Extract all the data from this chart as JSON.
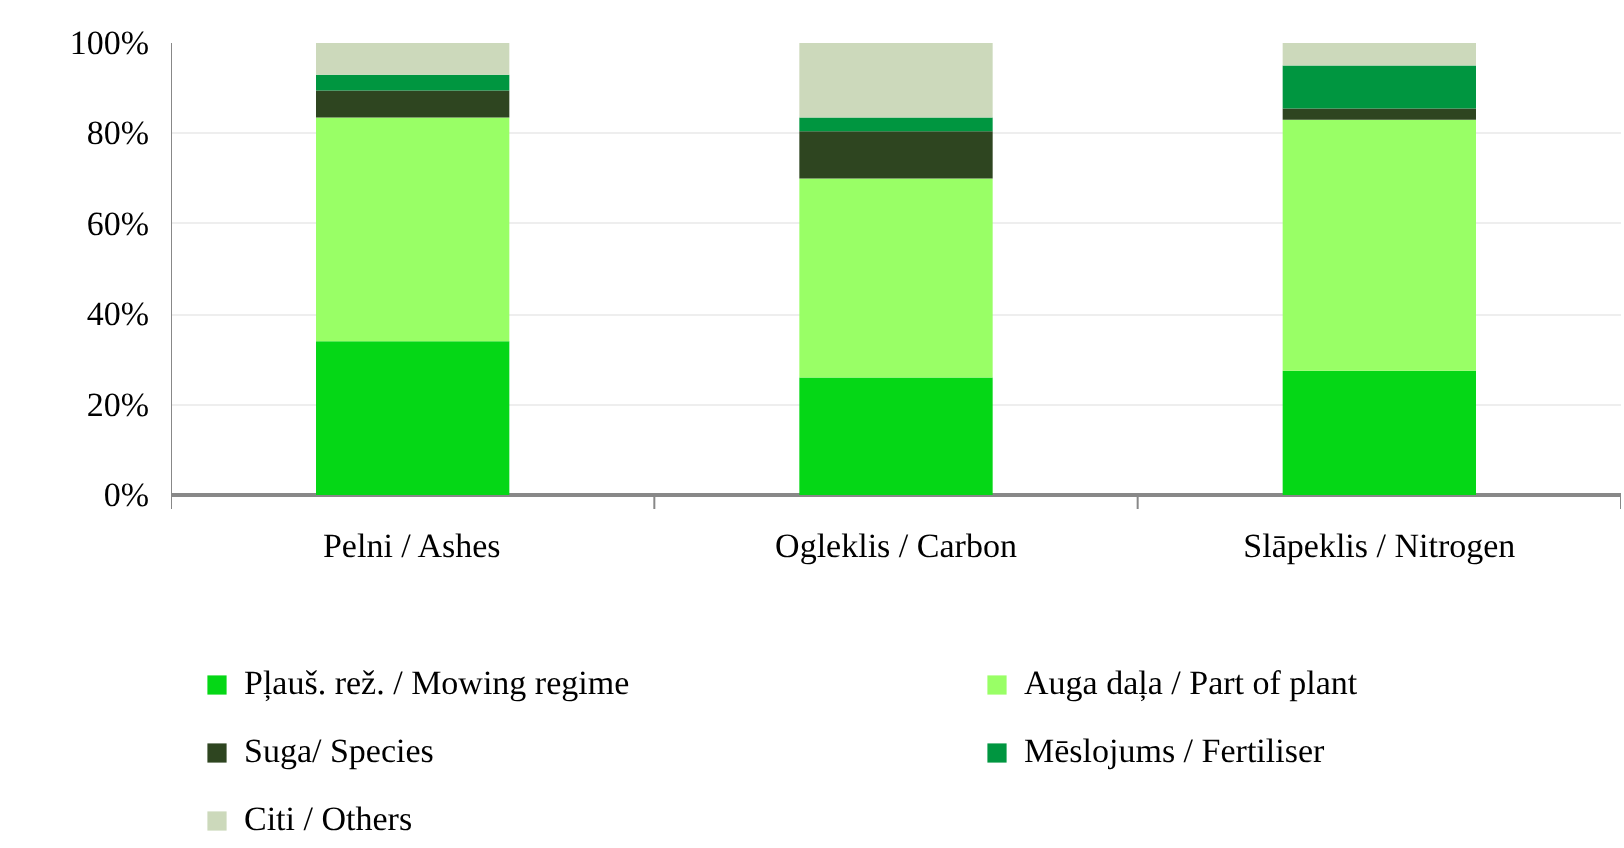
{
  "chart_data": {
    "type": "bar",
    "stacked": true,
    "categories": [
      "Pelni / Ashes",
      "Ogleklis / Carbon",
      "Slāpeklis / Nitrogen"
    ],
    "series": [
      {
        "name": "Pļauš. rež. / Mowing regime",
        "color": "#05d716",
        "values": [
          34,
          26,
          27.5
        ]
      },
      {
        "name": "Auga daļa / Part of plant",
        "color": "#99ff66",
        "values": [
          49.5,
          44,
          55.5
        ]
      },
      {
        "name": "Suga/ Species",
        "color": "#2e4520",
        "values": [
          6,
          10.5,
          2.5
        ]
      },
      {
        "name": "Mēslojums / Fertiliser",
        "color": "#009640",
        "values": [
          3.5,
          3,
          9.5
        ]
      },
      {
        "name": "Citi / Others",
        "color": "#ccd9bb",
        "values": [
          7,
          16.5,
          5
        ]
      }
    ],
    "ylim": [
      0,
      100
    ],
    "yticks": [
      {
        "value": 0,
        "label": "0%"
      },
      {
        "value": 20,
        "label": "20%"
      },
      {
        "value": 40,
        "label": "40%"
      },
      {
        "value": 60,
        "label": "60%"
      },
      {
        "value": 80,
        "label": "80%"
      },
      {
        "value": 100,
        "label": "100%"
      }
    ],
    "grid": "y",
    "legend": "bottom"
  }
}
